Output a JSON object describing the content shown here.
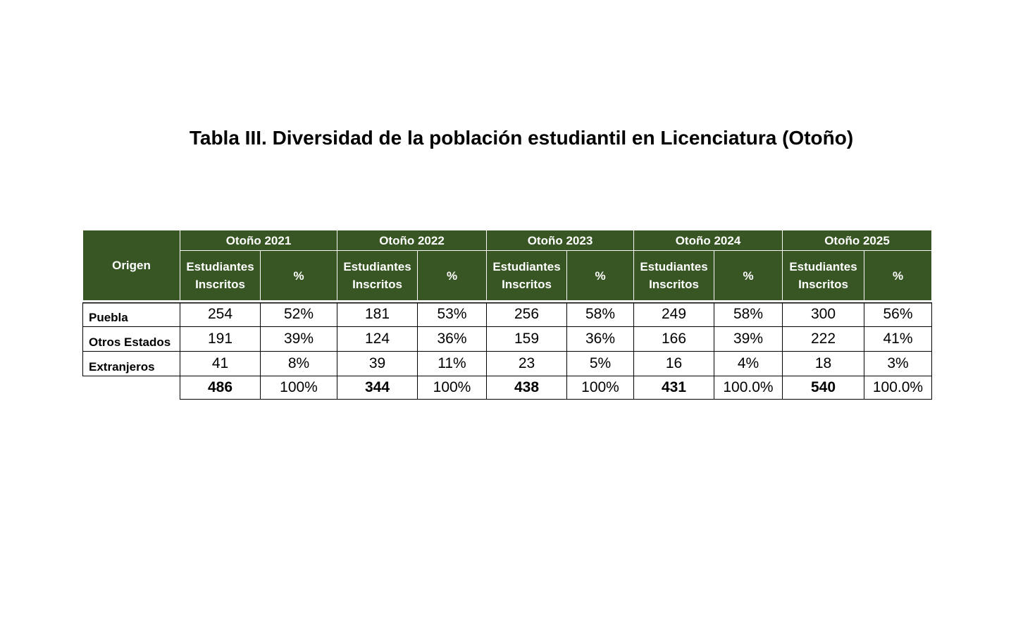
{
  "title": "Tabla III. Diversidad de la población estudiantil en Licenciatura (Otoño)",
  "table": {
    "origin_header": "Origen",
    "groups": [
      "Otoño 2021",
      "Otoño 2022",
      "Otoño 2023",
      "Otoño 2024",
      "Otoño 2025"
    ],
    "subheaders": [
      "Estudiantes Inscritos",
      "%"
    ],
    "rows": [
      [
        "Puebla",
        "254",
        "52%",
        "181",
        "53%",
        "256",
        "58%",
        "249",
        "58%",
        "300",
        "56%"
      ],
      [
        "Otros Estados",
        "191",
        "39%",
        "124",
        "36%",
        "159",
        "36%",
        "166",
        "39%",
        "222",
        "41%"
      ],
      [
        "Extranjeros",
        "41",
        "8%",
        "39",
        "11%",
        "23",
        "5%",
        "16",
        "4%",
        "18",
        "3%"
      ]
    ],
    "totals": [
      "486",
      "100%",
      "344",
      "100%",
      "438",
      "100%",
      "431",
      "100.0%",
      "540",
      "100.0%"
    ]
  }
}
